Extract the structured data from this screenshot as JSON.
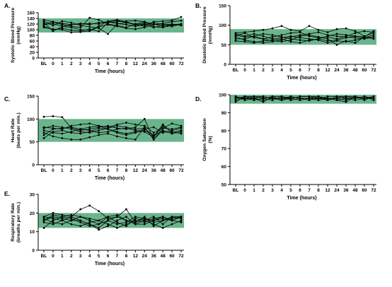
{
  "chart_data": [
    {
      "panel": "A.",
      "type": "line",
      "ylabel": "Systolic Blood Pressure (mmHg)",
      "ylabel_lines": [
        "Systolic Blood Pressure",
        "(mmHg)"
      ],
      "xlabel": "Time (hours)",
      "categories": [
        "BL",
        "0",
        "1",
        "2",
        "3",
        "4",
        "5",
        "6",
        "7",
        "8",
        "12",
        "24",
        "36",
        "48",
        "60",
        "72"
      ],
      "ylim": [
        0,
        160
      ],
      "yticks": [
        0,
        20,
        40,
        60,
        80,
        100,
        120,
        140,
        160
      ],
      "normal_range": [
        90,
        140
      ],
      "band_color": "#6ab58c",
      "series": [
        {
          "values": [
            125,
            95,
            110,
            118,
            120,
            122,
            120,
            128,
            132,
            125,
            118,
            112,
            128,
            130,
            133,
            145
          ]
        },
        {
          "values": [
            120,
            128,
            118,
            112,
            108,
            142,
            135,
            120,
            115,
            108,
            120,
            128,
            118,
            122,
            128,
            132
          ]
        },
        {
          "values": [
            112,
            100,
            105,
            98,
            95,
            102,
            94,
            125,
            128,
            130,
            132,
            128,
            110,
            108,
            115,
            118
          ]
        },
        {
          "values": [
            130,
            115,
            130,
            125,
            115,
            110,
            105,
            85,
            120,
            125,
            120,
            118,
            108,
            115,
            112,
            120
          ]
        },
        {
          "values": [
            118,
            122,
            112,
            108,
            100,
            98,
            112,
            130,
            135,
            128,
            118,
            122,
            125,
            118,
            120,
            115
          ]
        },
        {
          "values": [
            135,
            128,
            122,
            118,
            122,
            118,
            125,
            128,
            122,
            118,
            112,
            118,
            120,
            112,
            118,
            120
          ]
        },
        {
          "values": [
            108,
            102,
            100,
            90,
            92,
            95,
            110,
            118,
            112,
            105,
            102,
            108,
            118,
            120,
            115,
            118
          ]
        }
      ]
    },
    {
      "panel": "B.",
      "type": "line",
      "ylabel": "Diastolic Blood Pressure (mmHg)",
      "ylabel_lines": [
        "Diastolic Blood Pressure",
        "(mmHg)"
      ],
      "xlabel": "Time (hours)",
      "categories": [
        "BL",
        "0",
        "1",
        "2",
        "3",
        "4",
        "5",
        "6",
        "7",
        "8",
        "12",
        "24",
        "36",
        "48",
        "60",
        "72"
      ],
      "ylim": [
        0,
        150
      ],
      "yticks": [
        0,
        50,
        100,
        150
      ],
      "normal_range": [
        50,
        90
      ],
      "band_color": "#6ab58c",
      "series": [
        {
          "values": [
            80,
            82,
            85,
            88,
            92,
            98,
            88,
            85,
            98,
            88,
            82,
            90,
            92,
            85,
            72,
            80
          ]
        },
        {
          "values": [
            75,
            70,
            72,
            65,
            60,
            58,
            62,
            72,
            75,
            70,
            65,
            50,
            60,
            55,
            70,
            85
          ]
        },
        {
          "values": [
            70,
            62,
            58,
            55,
            58,
            62,
            70,
            75,
            78,
            82,
            75,
            72,
            70,
            68,
            65,
            70
          ]
        },
        {
          "values": [
            65,
            65,
            72,
            78,
            75,
            70,
            65,
            62,
            60,
            65,
            72,
            78,
            75,
            72,
            68,
            75
          ]
        },
        {
          "values": [
            72,
            80,
            68,
            65,
            70,
            75,
            80,
            82,
            72,
            68,
            70,
            65,
            72,
            80,
            85,
            82
          ]
        },
        {
          "values": [
            60,
            58,
            55,
            60,
            62,
            65,
            58,
            55,
            62,
            65,
            60,
            62,
            68,
            72,
            70,
            65
          ]
        },
        {
          "values": [
            78,
            72,
            78,
            72,
            65,
            68,
            72,
            68,
            65,
            62,
            55,
            60,
            58,
            62,
            68,
            70
          ]
        }
      ]
    },
    {
      "panel": "C.",
      "type": "line",
      "ylabel": "Heart Rate (beats per min.)",
      "ylabel_lines": [
        "Heart Rate",
        "(beats per min.)"
      ],
      "xlabel": "Time (hours)",
      "categories": [
        "BL",
        "0",
        "1",
        "2",
        "3",
        "4",
        "5",
        "6",
        "7",
        "8",
        "12",
        "24",
        "36",
        "48",
        "60",
        "72"
      ],
      "ylim": [
        0,
        150
      ],
      "yticks": [
        0,
        50,
        100,
        150
      ],
      "normal_range": [
        50,
        100
      ],
      "band_color": "#6ab58c",
      "series": [
        {
          "values": [
            105,
            106,
            104,
            80,
            75,
            78,
            82,
            85,
            80,
            78,
            82,
            100,
            55,
            80,
            90,
            85
          ]
        },
        {
          "values": [
            80,
            85,
            82,
            78,
            72,
            70,
            75,
            80,
            85,
            82,
            78,
            80,
            62,
            88,
            70,
            75
          ]
        },
        {
          "values": [
            75,
            70,
            68,
            72,
            78,
            82,
            85,
            78,
            72,
            68,
            72,
            78,
            82,
            70,
            75,
            80
          ]
        },
        {
          "values": [
            70,
            62,
            58,
            55,
            55,
            60,
            65,
            68,
            62,
            58,
            55,
            82,
            55,
            75,
            68,
            72
          ]
        },
        {
          "values": [
            65,
            78,
            80,
            82,
            78,
            75,
            70,
            72,
            78,
            80,
            75,
            72,
            60,
            85,
            72,
            68
          ]
        },
        {
          "values": [
            58,
            72,
            75,
            70,
            68,
            72,
            80,
            78,
            70,
            65,
            70,
            75,
            65,
            72,
            70,
            75
          ]
        },
        {
          "values": [
            82,
            80,
            78,
            85,
            88,
            90,
            85,
            82,
            88,
            92,
            88,
            85,
            70,
            80,
            78,
            82
          ]
        }
      ]
    },
    {
      "panel": "D.",
      "type": "line",
      "ylabel": "Oxygen Saturation (%)",
      "ylabel_lines": [
        "Oxygen Saturation",
        "(%)"
      ],
      "xlabel": "Time (hours)",
      "categories": [
        "BL",
        "0",
        "1",
        "2",
        "3",
        "4",
        "5",
        "6",
        "7",
        "8",
        "12",
        "24",
        "36",
        "48",
        "60",
        "72"
      ],
      "ylim": [
        50,
        100
      ],
      "yticks": [
        50,
        60,
        70,
        80,
        90,
        100
      ],
      "normal_range": [
        95,
        100
      ],
      "band_color": "#6ab58c",
      "series": [
        {
          "values": [
            96,
            99,
            98,
            99,
            98,
            97,
            98,
            99,
            99,
            98,
            97,
            98,
            99,
            99,
            98,
            99
          ]
        },
        {
          "values": [
            98,
            98,
            99,
            98,
            99,
            99,
            98,
            97,
            98,
            99,
            98,
            97,
            98,
            98,
            99,
            98
          ]
        },
        {
          "values": [
            99,
            97,
            98,
            97,
            98,
            98,
            99,
            98,
            97,
            98,
            99,
            99,
            98,
            97,
            98,
            98
          ]
        },
        {
          "values": [
            97,
            98,
            97,
            98,
            97,
            99,
            97,
            98,
            98,
            97,
            98,
            98,
            97,
            99,
            97,
            99
          ]
        },
        {
          "values": [
            98,
            99,
            99,
            99,
            98,
            98,
            98,
            99,
            99,
            99,
            97,
            99,
            99,
            98,
            99,
            97
          ]
        },
        {
          "values": [
            99,
            98,
            98,
            96,
            99,
            97,
            99,
            98,
            98,
            98,
            98,
            97,
            96,
            99,
            98,
            98
          ]
        }
      ]
    },
    {
      "panel": "E.",
      "type": "line",
      "ylabel": "Respiratory Rate (breaths per min.)",
      "ylabel_lines": [
        "Respiratory Rate",
        "(breaths per min.)"
      ],
      "xlabel": "Time (hours)",
      "categories": [
        "BL",
        "0",
        "1",
        "2",
        "3",
        "4",
        "5",
        "6",
        "7",
        "8",
        "12",
        "24",
        "36",
        "48",
        "60",
        "72"
      ],
      "ylim": [
        0,
        30
      ],
      "yticks": [
        0,
        10,
        20,
        30
      ],
      "normal_range": [
        12,
        20
      ],
      "band_color": "#6ab58c",
      "series": [
        {
          "values": [
            18,
            20,
            19,
            18,
            22,
            24,
            21,
            17,
            18,
            22,
            15,
            17,
            16,
            18,
            16,
            18
          ]
        },
        {
          "values": [
            16,
            18,
            17,
            16,
            16,
            14,
            12,
            16,
            18,
            16,
            14,
            16,
            18,
            14,
            18,
            18
          ]
        },
        {
          "values": [
            12,
            16,
            18,
            19,
            18,
            16,
            14,
            18,
            19,
            16,
            15,
            18,
            13,
            16,
            17,
            18
          ]
        },
        {
          "values": [
            18,
            17,
            16,
            14,
            13,
            15,
            16,
            14,
            12,
            14,
            16,
            15,
            17,
            18,
            16,
            15
          ]
        },
        {
          "values": [
            17,
            15,
            14,
            16,
            18,
            17,
            16,
            18,
            15,
            13,
            17,
            16,
            14,
            12,
            14,
            16
          ]
        },
        {
          "values": [
            15,
            14,
            16,
            18,
            16,
            14,
            11,
            13,
            16,
            18,
            14,
            14,
            16,
            17,
            16,
            18
          ]
        },
        {
          "values": [
            16,
            19,
            18,
            17,
            15,
            13,
            14,
            16,
            14,
            15,
            18,
            17,
            15,
            16,
            18,
            17
          ]
        }
      ]
    }
  ]
}
